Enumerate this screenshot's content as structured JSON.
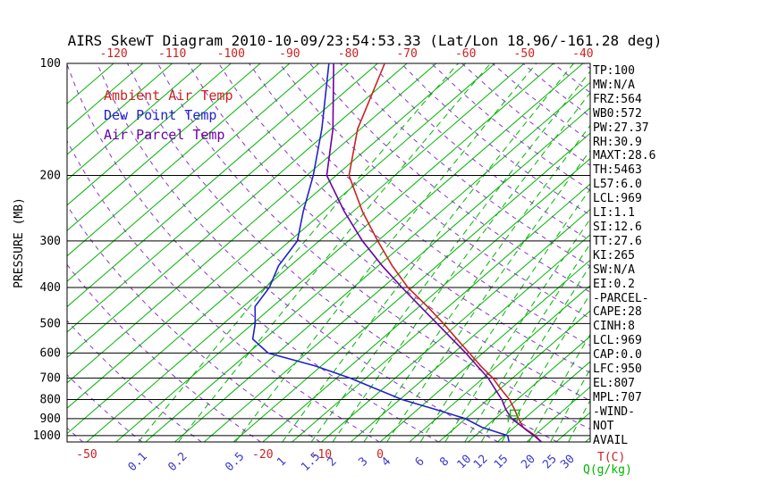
{
  "title": "AIRS SkewT Diagram 2010-10-09/23:54:53.33 (Lat/Lon 18.96/-161.28 deg)",
  "legend": [
    {
      "label": "Ambient Air Temp",
      "color": "#cc2222"
    },
    {
      "label": "Dew Point Temp",
      "color": "#2222cc"
    },
    {
      "label": "Air Parcel Temp",
      "color": "#6a00aa"
    }
  ],
  "axes": {
    "pressure_axis_label": "PRESSURE (MB)",
    "pressure_ticks": [
      100,
      200,
      300,
      400,
      500,
      600,
      700,
      800,
      900,
      1000
    ],
    "top_temperature_ticks_c": [
      -120,
      -110,
      -100,
      -90,
      -80,
      -70,
      -60,
      -50,
      -40
    ],
    "bottom_temperature_ticks_c": [
      -50,
      -20,
      -10,
      0
    ],
    "temperature_unit_label": "T(C)",
    "mixing_ratio_ticks_gkg": [
      0.1,
      0.2,
      0.5,
      1,
      1.5,
      2,
      3,
      4,
      6,
      8,
      10,
      12,
      15,
      20,
      25,
      30
    ],
    "mixing_ratio_unit_label": "Q(g/kg)"
  },
  "stats_panel": [
    "TP:100",
    "MW:N/A",
    "FRZ:564",
    "WB0:572",
    "PW:27.37",
    "RH:30.9",
    "MAXT:28.6",
    "TH:5463",
    "L57:6.0",
    "LCL:969",
    "LI:1.1",
    "SI:12.6",
    "TT:27.6",
    "KI:265",
    "SW:N/A",
    "EI:0.2",
    "-PARCEL-",
    "CAPE:28",
    "CINH:8",
    "LCL:969",
    "CAP:0.0",
    "LFC:950",
    "EL:807",
    "MPL:707",
    "-WIND-",
    "NOT",
    "AVAIL"
  ],
  "colors": {
    "isotherm": "#00b400",
    "mixing_ratio": "#00b400",
    "dry_adiabat": "#8833cc",
    "axis": "#000000",
    "top_ticks": "#cc2222",
    "bottom_temp_ticks": "#cc2222",
    "mixing_ratio_ticks": "#3a3acc",
    "pressure_ticks": "#000000",
    "temp_unit": "#cc2222",
    "mixing_unit": "#00b400"
  },
  "chart_data": {
    "type": "line",
    "title": "AIRS SkewT Diagram 2010-10-09/23:54:53.33 (Lat/Lon 18.96/-161.28 deg)",
    "x_axis": {
      "label": "T(C)",
      "unit": "deg C",
      "skewed": true,
      "top_range_c": [
        -120,
        -40
      ],
      "bottom_range_c": [
        -53,
        36
      ]
    },
    "y_axis": {
      "label": "PRESSURE (MB)",
      "scale": "log",
      "range_mb": [
        100,
        1040
      ],
      "inverted": true
    },
    "grid": {
      "isotherm_step_c": 5,
      "dry_adiabat_step_k": 10,
      "mixing_ratio_lines_gkg": [
        0.1,
        0.2,
        0.5,
        1,
        1.5,
        2,
        3,
        4,
        6,
        8,
        10,
        12,
        15,
        20,
        25,
        30
      ]
    },
    "series": [
      {
        "name": "Ambient Air Temp",
        "color": "#cc2222",
        "points": [
          [
            1040,
            27.5
          ],
          [
            1000,
            25.2
          ],
          [
            950,
            21.5
          ],
          [
            900,
            19.0
          ],
          [
            850,
            16.5
          ],
          [
            800,
            13.7
          ],
          [
            750,
            10.2
          ],
          [
            700,
            6.6
          ],
          [
            650,
            2.2
          ],
          [
            600,
            -2.3
          ],
          [
            550,
            -7.2
          ],
          [
            500,
            -12.5
          ],
          [
            450,
            -18.6
          ],
          [
            400,
            -25.7
          ],
          [
            350,
            -32.6
          ],
          [
            300,
            -40.0
          ],
          [
            250,
            -48.4
          ],
          [
            200,
            -57.8
          ],
          [
            150,
            -65.5
          ],
          [
            100,
            -73.8
          ]
        ]
      },
      {
        "name": "Dew Point Temp",
        "color": "#2222cc",
        "points": [
          [
            1040,
            22.0
          ],
          [
            1000,
            20.5
          ],
          [
            950,
            14.5
          ],
          [
            900,
            9.9
          ],
          [
            850,
            3.0
          ],
          [
            800,
            -4.6
          ],
          [
            750,
            -11.0
          ],
          [
            700,
            -17.8
          ],
          [
            650,
            -26.0
          ],
          [
            600,
            -36.6
          ],
          [
            550,
            -42.0
          ],
          [
            500,
            -44.6
          ],
          [
            450,
            -48.0
          ],
          [
            400,
            -49.3
          ],
          [
            350,
            -52.0
          ],
          [
            300,
            -53.7
          ],
          [
            250,
            -58.5
          ],
          [
            200,
            -63.9
          ],
          [
            150,
            -71.6
          ],
          [
            100,
            -83.3
          ]
        ]
      },
      {
        "name": "Air Parcel Temp",
        "color": "#6a00aa",
        "points": [
          [
            1040,
            27.5
          ],
          [
            1000,
            25.0
          ],
          [
            969,
            22.8
          ],
          [
            950,
            21.5
          ],
          [
            900,
            17.8
          ],
          [
            850,
            15.0
          ],
          [
            800,
            12.4
          ],
          [
            750,
            9.2
          ],
          [
            700,
            5.8
          ],
          [
            650,
            1.6
          ],
          [
            600,
            -2.9
          ],
          [
            550,
            -8.0
          ],
          [
            500,
            -13.6
          ],
          [
            450,
            -19.8
          ],
          [
            400,
            -26.7
          ],
          [
            350,
            -34.3
          ],
          [
            300,
            -42.6
          ],
          [
            250,
            -51.5
          ],
          [
            200,
            -61.6
          ],
          [
            150,
            -69.7
          ],
          [
            100,
            -82.5
          ]
        ]
      }
    ],
    "annotations": [
      {
        "name": "green-level-marker",
        "pressure_mb": 900,
        "temp_c": 18.0
      },
      {
        "name": "green-level-marker",
        "pressure_mb": 868,
        "temp_c": 17.2
      }
    ]
  }
}
